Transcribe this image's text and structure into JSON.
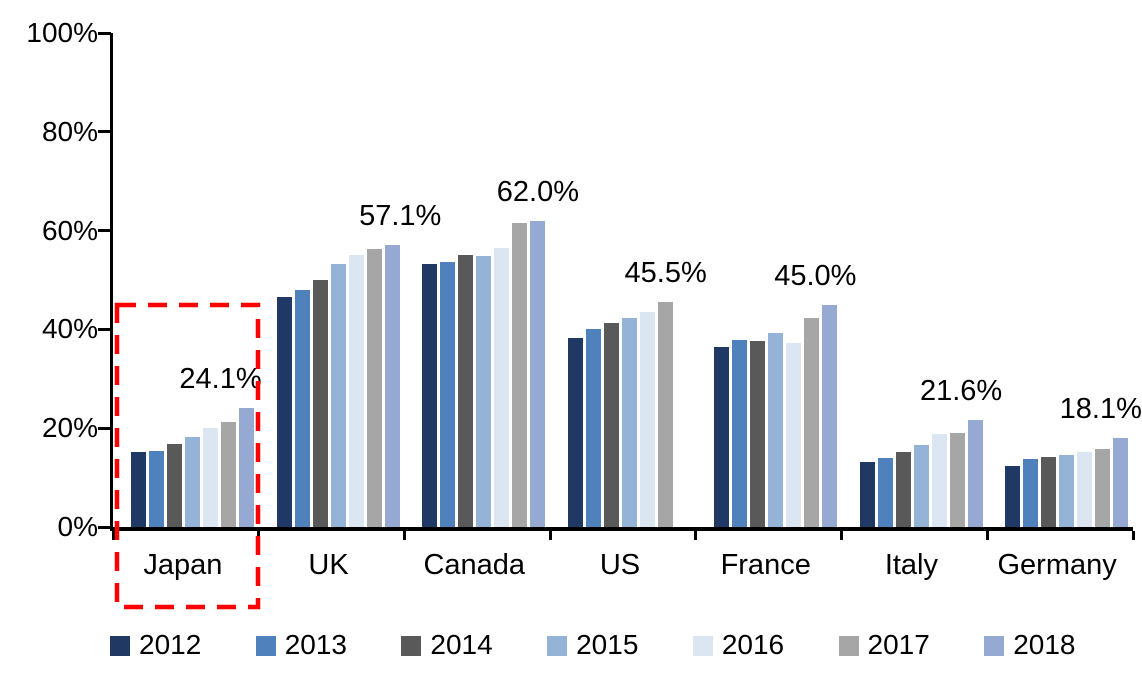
{
  "chart_data": {
    "type": "bar",
    "title": "",
    "xlabel": "",
    "ylabel": "",
    "ylim": [
      0,
      100
    ],
    "y_tick_labels": [
      "0%",
      "20%",
      "40%",
      "60%",
      "80%",
      "100%"
    ],
    "grid": false,
    "legend_position": "bottom",
    "categories": [
      "Japan",
      "UK",
      "Canada",
      "US",
      "France",
      "Italy",
      "Germany"
    ],
    "series": [
      {
        "name": "2012",
        "color": "#1F3864",
        "values": [
          15.1,
          46.5,
          53.2,
          38.2,
          36.5,
          13.2,
          12.4
        ]
      },
      {
        "name": "2013",
        "color": "#4F81BD",
        "values": [
          15.3,
          48.0,
          53.7,
          40.0,
          37.8,
          13.9,
          13.8
        ]
      },
      {
        "name": "2014",
        "color": "#595959",
        "values": [
          16.9,
          50.0,
          55.0,
          41.2,
          37.6,
          15.1,
          14.2
        ]
      },
      {
        "name": "2015",
        "color": "#95B3D7",
        "values": [
          18.2,
          53.3,
          54.9,
          42.3,
          39.3,
          16.6,
          14.6
        ]
      },
      {
        "name": "2016",
        "color": "#DCE6F2",
        "values": [
          20.0,
          55.0,
          56.4,
          43.6,
          37.3,
          18.8,
          15.1
        ]
      },
      {
        "name": "2017",
        "color": "#A6A6A6",
        "values": [
          21.3,
          56.3,
          61.5,
          45.5,
          42.4,
          19.0,
          15.7
        ]
      },
      {
        "name": "2018",
        "color": "#96A9D3",
        "values": [
          24.1,
          57.1,
          62.0,
          null,
          45.0,
          21.6,
          18.1
        ]
      }
    ],
    "data_labels": [
      {
        "category": "Japan",
        "text": "24.1%",
        "dx": -26
      },
      {
        "category": "UK",
        "text": "57.1%",
        "dx": 8
      },
      {
        "category": "Canada",
        "text": "62.0%",
        "dx": 0
      },
      {
        "category": "US",
        "text": "45.5%",
        "dx": 0
      },
      {
        "category": "France",
        "text": "45.0%",
        "dx": -14
      },
      {
        "category": "Italy",
        "text": "21.6%",
        "dx": -14
      },
      {
        "category": "Germany",
        "text": "18.1%",
        "dx": -20
      }
    ],
    "highlight": {
      "target_category": "Japan",
      "shape": "dashed-rectangle",
      "color": "#FF0000"
    },
    "axis_color": "#000000",
    "text_color": "#000000",
    "background_color": "#FFFFFF"
  },
  "legend": {
    "items": [
      {
        "label": "2012",
        "color": "#1F3864"
      },
      {
        "label": "2013",
        "color": "#4F81BD"
      },
      {
        "label": "2014",
        "color": "#595959"
      },
      {
        "label": "2015",
        "color": "#95B3D7"
      },
      {
        "label": "2016",
        "color": "#DCE6F2"
      },
      {
        "label": "2017",
        "color": "#A6A6A6"
      },
      {
        "label": "2018",
        "color": "#96A9D3"
      }
    ]
  }
}
